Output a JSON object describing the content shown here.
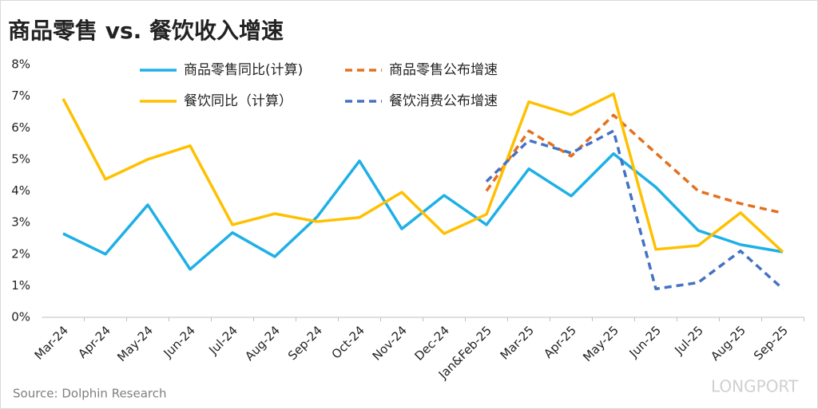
{
  "chart_data": {
    "type": "line",
    "title": "商品零售 vs. 餐饮收入增速",
    "source": "Source: Dolphin Research",
    "watermark": "LONGPORT",
    "categories": [
      "Mar-24",
      "Apr-24",
      "May-24",
      "Jun-24",
      "Jul-24",
      "Aug-24",
      "Sep-24",
      "Oct-24",
      "Nov-24",
      "Dec-24",
      "Jan&Feb-25",
      "Mar-25",
      "Apr-25",
      "May-25",
      "Jun-25",
      "Jul-25",
      "Aug-25",
      "Sep-25"
    ],
    "series": [
      {
        "name": "商品零售同比(计算)",
        "color": "#1eb0e6",
        "line_style": "solid",
        "values": [
          2.65,
          2.0,
          3.56,
          1.52,
          2.68,
          1.92,
          3.18,
          4.95,
          2.8,
          3.86,
          2.93,
          4.7,
          3.84,
          5.18,
          4.12,
          2.75,
          2.3,
          2.07
        ]
      },
      {
        "name": "商品零售公布增速",
        "color": "#e4701e",
        "line_style": "dashed",
        "values": [
          null,
          null,
          null,
          null,
          null,
          null,
          null,
          null,
          null,
          null,
          4.0,
          5.9,
          5.1,
          6.4,
          5.2,
          4.0,
          3.6,
          3.3
        ]
      },
      {
        "name": "餐饮同比（计算）",
        "color": "#ffc000",
        "line_style": "solid",
        "values": [
          6.92,
          4.37,
          5.0,
          5.43,
          2.93,
          3.28,
          3.03,
          3.16,
          3.96,
          2.65,
          3.26,
          6.82,
          6.41,
          7.07,
          2.15,
          2.27,
          3.31,
          2.07
        ]
      },
      {
        "name": "餐饮消费公布增速",
        "color": "#4472c4",
        "line_style": "dashed",
        "values": [
          null,
          null,
          null,
          null,
          null,
          null,
          null,
          null,
          null,
          null,
          4.3,
          5.6,
          5.2,
          5.9,
          0.9,
          1.1,
          2.1,
          0.9
        ]
      }
    ],
    "ylim": [
      0,
      8
    ],
    "yticks": [
      {
        "value": 0,
        "label": "0%"
      },
      {
        "value": 1,
        "label": "1%"
      },
      {
        "value": 2,
        "label": "2%"
      },
      {
        "value": 3,
        "label": "3%"
      },
      {
        "value": 4,
        "label": "4%"
      },
      {
        "value": 5,
        "label": "5%"
      },
      {
        "value": 6,
        "label": "6%"
      },
      {
        "value": 7,
        "label": "7%"
      },
      {
        "value": 8,
        "label": "8%"
      }
    ],
    "grid": false
  }
}
